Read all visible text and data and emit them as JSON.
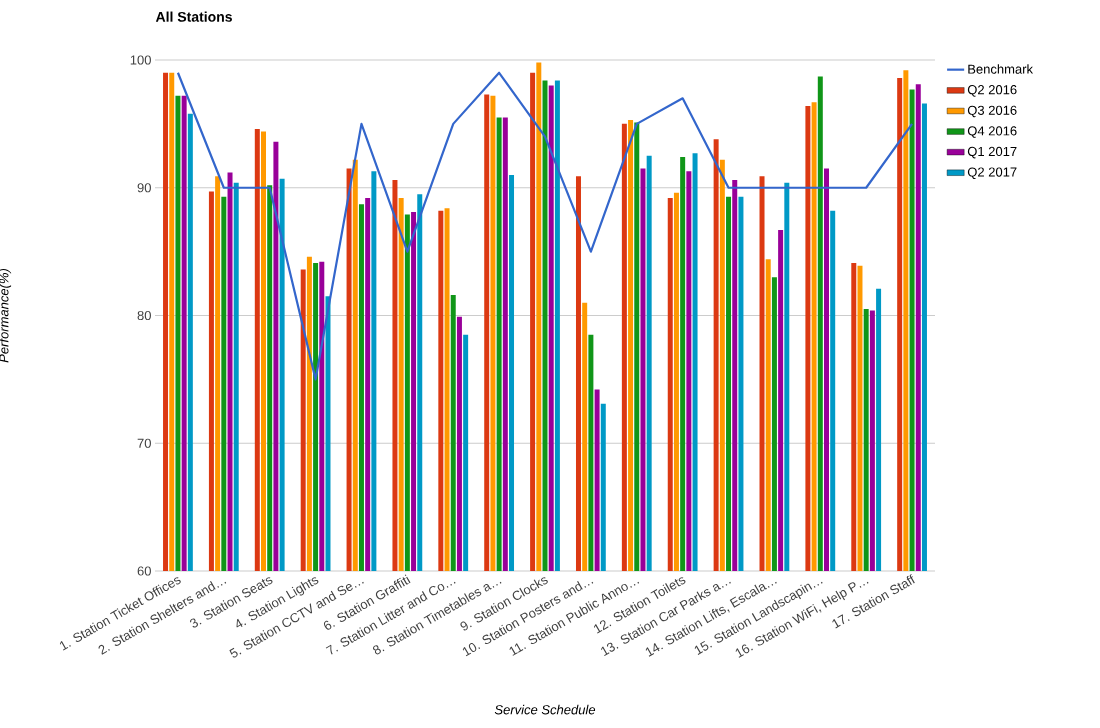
{
  "chart_data": {
    "type": "bar",
    "title": "All Stations",
    "xlabel": "Service Schedule",
    "ylabel": "Performance(%)",
    "categories": [
      "1. Station Ticket Offices",
      "2. Station Shelters and…",
      "3. Station Seats",
      "4. Station Lights",
      "5. Station CCTV and Se…",
      "6. Station Graffiti",
      "7. Station Litter and Co…",
      "8. Station Timetables a…",
      "9. Station Clocks",
      "10. Station Posters and…",
      "11. Station Public Anno…",
      "12. Station Toilets",
      "13. Station Car Parks a…",
      "14. Station Lifts, Escala…",
      "15. Station Landscapin…",
      "16. Station WiFi, Help P…",
      "17. Station Staff"
    ],
    "series": [
      {
        "name": "Benchmark",
        "type": "line",
        "color": "#3366cc",
        "values": [
          99,
          90,
          90,
          75,
          95,
          85,
          95,
          99,
          94,
          85,
          95,
          97,
          90,
          90,
          90,
          90,
          95
        ]
      },
      {
        "name": "Q2 2016",
        "color": "#dc3912",
        "values": [
          99.0,
          89.7,
          94.6,
          83.6,
          91.5,
          90.6,
          88.2,
          97.3,
          99.0,
          90.9,
          95.0,
          89.2,
          93.8,
          90.9,
          96.4,
          84.1,
          98.6
        ]
      },
      {
        "name": "Q3 2016",
        "color": "#ff9900",
        "values": [
          99.0,
          90.9,
          94.4,
          84.6,
          92.2,
          89.2,
          88.4,
          97.2,
          99.8,
          81.0,
          95.3,
          89.6,
          92.2,
          84.4,
          96.7,
          83.9,
          99.2
        ]
      },
      {
        "name": "Q4 2016",
        "color": "#109618",
        "values": [
          97.2,
          89.3,
          90.2,
          84.1,
          88.7,
          87.9,
          81.6,
          95.5,
          98.4,
          78.5,
          95.1,
          92.4,
          89.3,
          83.0,
          98.7,
          80.5,
          97.7
        ]
      },
      {
        "name": "Q1 2017",
        "color": "#990099",
        "values": [
          97.2,
          91.2,
          93.6,
          84.2,
          89.2,
          88.1,
          79.9,
          95.5,
          98.0,
          74.2,
          91.5,
          91.3,
          90.6,
          86.7,
          91.5,
          80.4,
          98.1
        ]
      },
      {
        "name": "Q2 2017",
        "color": "#0099c6",
        "values": [
          95.8,
          90.4,
          90.7,
          81.5,
          91.3,
          89.5,
          78.5,
          91.0,
          98.4,
          73.1,
          92.5,
          92.7,
          89.3,
          90.4,
          88.2,
          82.1,
          96.6
        ]
      }
    ],
    "ylim": [
      60,
      100
    ],
    "yticks": [
      60,
      70,
      80,
      90,
      100
    ],
    "grid": "y",
    "legend": "right"
  }
}
